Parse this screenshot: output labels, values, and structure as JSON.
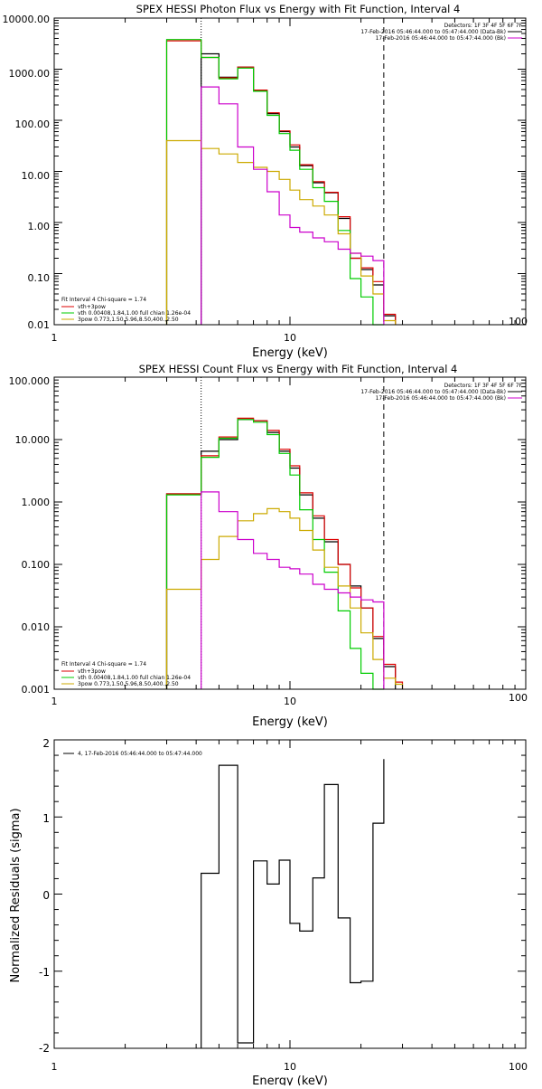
{
  "chart_data": [
    {
      "type": "line",
      "title": "SPEX HESSI Photon Flux vs Energy with Fit Function, Interval 4",
      "xlabel": "Energy (keV)",
      "ylabel": "",
      "xscale": "log",
      "yscale": "log",
      "xlim": [
        1,
        100
      ],
      "ylim": [
        0.01,
        10000
      ],
      "xticks": [
        "1",
        "10",
        "100"
      ],
      "yticks": [
        "0.01",
        "0.10",
        "1.00",
        "10.00",
        "100.00",
        "1000.00",
        "10000.00"
      ],
      "vlines": [
        {
          "x": 4.2,
          "style": "dotted"
        },
        {
          "x": 25,
          "style": "dashed"
        }
      ],
      "legend_right": {
        "title": "Detectors: 1F 3F 4F 5F 6F 7F",
        "entries": [
          {
            "label": "17-Feb-2016 05:46:44.000 to 05:47:44.000 (Data-Bk)",
            "color": "#000000"
          },
          {
            "label": "17-Feb-2016 05:46:44.000 to 05:47:44.000 (Bk)",
            "color": "#cc00cc"
          }
        ]
      },
      "legend_left": {
        "title": "Fit Interval 4   Chi-square = 1.74",
        "entries": [
          {
            "label": "vth+3pow",
            "color": "#dd0000"
          },
          {
            "label": "vth 0.00408,1.84,1.00  full chian 1.26e-04",
            "color": "#00cc00"
          },
          {
            "label": "3pow 0.773,1.50,5.96,8.50,400.,2.50",
            "color": "#ccaa00"
          }
        ]
      },
      "series": [
        {
          "key": "data",
          "color": "#000000",
          "edges": [
            4.2,
            5.0,
            6.0,
            7.0,
            8.0,
            9.0,
            10,
            11,
            12.5,
            14,
            16,
            18,
            20,
            22.5,
            25,
            28
          ],
          "values": [
            2000,
            700,
            1100,
            380,
            135,
            60,
            30,
            13,
            6,
            3.8,
            1.2,
            0.2,
            0.12,
            0.06,
            0.015
          ]
        },
        {
          "key": "vth_3pow",
          "color": "#dd0000",
          "edges": [
            3.0,
            4.2,
            5.0,
            6.0,
            7.0,
            8.0,
            9.0,
            10,
            11,
            12.5,
            14,
            16,
            18,
            20,
            22.5,
            25,
            28
          ],
          "values": [
            3600,
            1700,
            680,
            1100,
            390,
            140,
            62,
            33,
            13.5,
            6.3,
            3.9,
            1.3,
            0.2,
            0.13,
            0.07,
            0.016
          ]
        },
        {
          "key": "vth",
          "color": "#00cc00",
          "edges": [
            3.0,
            4.2,
            5.0,
            6.0,
            7.0,
            8.0,
            9.0,
            10,
            11,
            12.5,
            14,
            16,
            18,
            20,
            22.5,
            25
          ],
          "values": [
            3800,
            1700,
            650,
            1050,
            370,
            125,
            55,
            26,
            11,
            4.8,
            2.6,
            0.7,
            0.08,
            0.035,
            0.01
          ]
        },
        {
          "key": "3pow",
          "color": "#ccaa00",
          "edges": [
            3.0,
            4.2,
            5.0,
            6.0,
            7.0,
            8.0,
            9.0,
            10,
            11,
            12.5,
            14,
            16,
            18,
            20,
            22.5,
            25,
            28
          ],
          "values": [
            40,
            28,
            22,
            15,
            12,
            10,
            7,
            4.3,
            2.8,
            2.1,
            1.4,
            0.6,
            0.25,
            0.09,
            0.04,
            0.012
          ]
        },
        {
          "key": "bk",
          "color": "#cc00cc",
          "edges": [
            4.2,
            5.0,
            6.0,
            7.0,
            8.0,
            9.0,
            10,
            11,
            12.5,
            14,
            16,
            18,
            20,
            22.5,
            25
          ],
          "values": [
            450,
            210,
            30,
            11,
            4,
            1.4,
            0.8,
            0.65,
            0.5,
            0.42,
            0.3,
            0.25,
            0.22,
            0.18
          ]
        }
      ]
    },
    {
      "type": "line",
      "title": "SPEX HESSI Count Flux vs Energy with Fit Function, Interval 4",
      "xlabel": "Energy (keV)",
      "ylabel": "",
      "xscale": "log",
      "yscale": "log",
      "xlim": [
        1,
        100
      ],
      "ylim": [
        0.001,
        100
      ],
      "xticks": [
        "1",
        "10",
        "100"
      ],
      "yticks": [
        "0.001",
        "0.010",
        "0.100",
        "1.000",
        "10.000",
        "100.000"
      ],
      "vlines": [
        {
          "x": 4.2,
          "style": "dotted"
        },
        {
          "x": 25,
          "style": "dashed"
        }
      ],
      "legend_right": {
        "title": "Detectors: 1F 3F 4F 5F 6F 7F",
        "entries": [
          {
            "label": "17-Feb-2016 05:46:44.000 to 05:47:44.000 (Data-Bk)",
            "color": "#000000"
          },
          {
            "label": "17-Feb-2016 05:46:44.000 to 05:47:44.000 (Bk)",
            "color": "#cc00cc"
          }
        ]
      },
      "legend_left": {
        "title": "Fit Interval 4   Chi-square = 1.74",
        "entries": [
          {
            "label": "vth+3pow",
            "color": "#dd0000"
          },
          {
            "label": "vth 0.00408,1.84,1.00  full chian 1.26e-04",
            "color": "#00cc00"
          },
          {
            "label": "3pow 0.773,1.50,5.96,8.50,400.,2.50",
            "color": "#ccaa00"
          }
        ]
      },
      "series": [
        {
          "key": "data",
          "color": "#000000",
          "edges": [
            3.0,
            4.2,
            5.0,
            6.0,
            7.0,
            8.0,
            9.0,
            10,
            11,
            12.5,
            14,
            16,
            18,
            20,
            22.5,
            25,
            28
          ],
          "values": [
            1.35,
            6.5,
            10,
            21,
            20,
            13,
            6.5,
            3.5,
            1.3,
            0.55,
            0.23,
            0.1,
            0.045,
            0.02,
            0.0065,
            0.0023
          ]
        },
        {
          "key": "vth_3pow",
          "color": "#dd0000",
          "edges": [
            3.0,
            4.2,
            5.0,
            6.0,
            7.0,
            8.0,
            9.0,
            10,
            11,
            12.5,
            14,
            16,
            18,
            20,
            22.5,
            25,
            28,
            30
          ],
          "values": [
            1.35,
            5.5,
            11,
            22,
            20,
            14,
            7,
            3.8,
            1.4,
            0.6,
            0.25,
            0.1,
            0.042,
            0.02,
            0.007,
            0.0025,
            0.0013
          ]
        },
        {
          "key": "vth",
          "color": "#00cc00",
          "edges": [
            3.0,
            4.2,
            5.0,
            6.0,
            7.0,
            8.0,
            9.0,
            10,
            11,
            12.5,
            14,
            16,
            18,
            20,
            22.5,
            25
          ],
          "values": [
            1.3,
            5.2,
            10.5,
            21,
            19,
            12,
            6,
            2.7,
            0.75,
            0.25,
            0.075,
            0.018,
            0.0045,
            0.0018,
            0.001
          ]
        },
        {
          "key": "3pow",
          "color": "#ccaa00",
          "edges": [
            3.0,
            4.2,
            5.0,
            6.0,
            7.0,
            8.0,
            9.0,
            10,
            11,
            12.5,
            14,
            16,
            18,
            20,
            22.5,
            25,
            28,
            30
          ],
          "values": [
            0.04,
            0.12,
            0.28,
            0.5,
            0.65,
            0.78,
            0.7,
            0.55,
            0.35,
            0.17,
            0.09,
            0.045,
            0.02,
            0.008,
            0.003,
            0.0015,
            0.0012
          ]
        },
        {
          "key": "bk",
          "color": "#cc00cc",
          "edges": [
            4.2,
            5.0,
            6.0,
            7.0,
            8.0,
            9.0,
            10,
            11,
            12.5,
            14,
            16,
            18,
            20,
            22.5,
            25
          ],
          "values": [
            1.45,
            0.7,
            0.25,
            0.15,
            0.12,
            0.09,
            0.085,
            0.07,
            0.048,
            0.04,
            0.035,
            0.03,
            0.027,
            0.025
          ]
        }
      ]
    },
    {
      "type": "line",
      "title": "",
      "xlabel": "Energy (keV)",
      "ylabel": "Normalized Residuals (sigma)",
      "xscale": "log",
      "yscale": "linear",
      "xlim": [
        1,
        100
      ],
      "ylim": [
        -2,
        2
      ],
      "xticks": [
        "1",
        "10",
        "100"
      ],
      "yticks": [
        "2",
        "1",
        "0",
        "-1",
        "-2"
      ],
      "legend_left": {
        "entries": [
          {
            "label": "4, 17-Feb-2016 05:46:44.000 to 05:47:44.000",
            "color": "#000000"
          }
        ]
      },
      "series": [
        {
          "key": "residuals",
          "color": "#000000",
          "edges": [
            4.2,
            5.0,
            6.0,
            7.0,
            8.0,
            9.0,
            10,
            11,
            12.5,
            14,
            16,
            18,
            20,
            22.5,
            25
          ],
          "values": [
            0.27,
            1.67,
            -1.93,
            0.43,
            0.13,
            0.44,
            -0.38,
            -0.48,
            0.21,
            1.42,
            -0.31,
            -1.15,
            -1.13,
            0.92,
            1.75
          ]
        }
      ]
    }
  ]
}
